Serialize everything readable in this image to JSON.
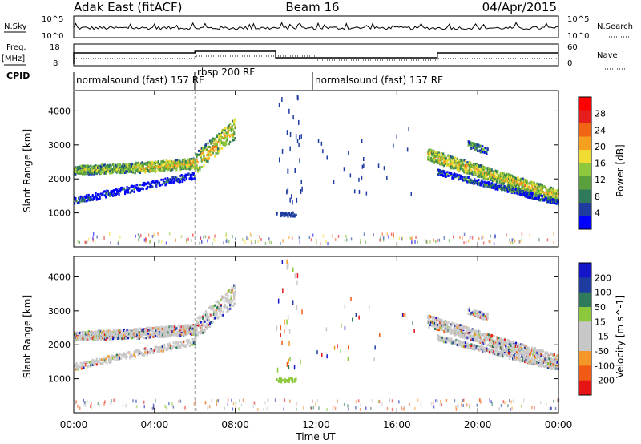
{
  "header": {
    "left_title": "Adak East (fitACF)",
    "center_title": "Beam 16",
    "date": "04/Apr/2015"
  },
  "noise_panel": {
    "left_label": "N.Sky",
    "right_label": "N.Search",
    "left_ticks": [
      "10^5",
      "10^0"
    ],
    "right_ticks": [
      "10^5",
      "10^0"
    ]
  },
  "freq_panel": {
    "left_label_top": "Freq.",
    "left_label_unit": "[MHz]",
    "left_ticks": [
      "18",
      "8"
    ],
    "right_label": "Nave",
    "right_ticks": [
      "60",
      "0"
    ]
  },
  "cpid": {
    "label": "CPID",
    "segments": [
      {
        "start_hour": 0,
        "end_hour": 6,
        "name": "normalsound (fast) 157 RF"
      },
      {
        "start_hour": 6,
        "end_hour": 12,
        "name": "rbsp 200 RF"
      },
      {
        "start_hour": 12,
        "end_hour": 24,
        "name": "normalsound (fast) 157 RF"
      }
    ]
  },
  "colors": {
    "power": [
      "#0000ff",
      "#1e3ca0",
      "#2f7a5a",
      "#5aa03c",
      "#8ec83c",
      "#f0dc32",
      "#f5a01e",
      "#f06414",
      "#e61e1e",
      "#ff0000"
    ],
    "velocity": [
      "#e61414",
      "#f05a14",
      "#f59628",
      "#c8c8c8",
      "#c8c8c8",
      "#8cc83c",
      "#2f7a5a",
      "#1e3ca0",
      "#1414c8"
    ]
  },
  "chart_data": [
    {
      "type": "heatmap",
      "title": "Power",
      "xlabel": "Time UT",
      "ylabel": "Slant Range [km]",
      "x_range_hours": [
        0,
        24
      ],
      "x_ticks": [
        "00:00",
        "04:00",
        "08:00",
        "12:00",
        "16:00",
        "20:00",
        "00:00"
      ],
      "ylim": [
        0,
        4600
      ],
      "y_ticks": [
        1000,
        2000,
        3000,
        4000
      ],
      "colorbar": {
        "label": "Power [dB]",
        "ticks": [
          "28",
          "24",
          "20",
          "16",
          "12",
          "8",
          "4"
        ],
        "range": [
          0,
          30
        ]
      },
      "echo_bands": [
        {
          "t_start": 0.0,
          "t_end": 3.0,
          "range_start": 2250,
          "range_end": 2320,
          "level_db": 14
        },
        {
          "t_start": 3.0,
          "t_end": 6.0,
          "range_start": 2320,
          "range_end": 2450,
          "level_db": 18
        },
        {
          "t_start": 6.0,
          "t_end": 8.0,
          "range_start": 2450,
          "range_end": 3600,
          "level_db": 20
        },
        {
          "t_start": 17.5,
          "t_end": 24.0,
          "range_start": 2700,
          "range_end": 1500,
          "level_db": 18
        }
      ]
    },
    {
      "type": "heatmap",
      "title": "Velocity",
      "xlabel": "Time UT",
      "ylabel": "Slant Range [km]",
      "x_range_hours": [
        0,
        24
      ],
      "x_ticks": [
        "00:00",
        "04:00",
        "08:00",
        "12:00",
        "16:00",
        "20:00",
        "00:00"
      ],
      "ylim": [
        0,
        4600
      ],
      "y_ticks": [
        1000,
        2000,
        3000,
        4000
      ],
      "colorbar": {
        "label": "Velocity [m s^-1]",
        "ticks": [
          "200",
          "100",
          "50",
          "15",
          "-15",
          "-50",
          "-100",
          "-200"
        ],
        "range": [
          -250,
          250
        ]
      }
    }
  ]
}
